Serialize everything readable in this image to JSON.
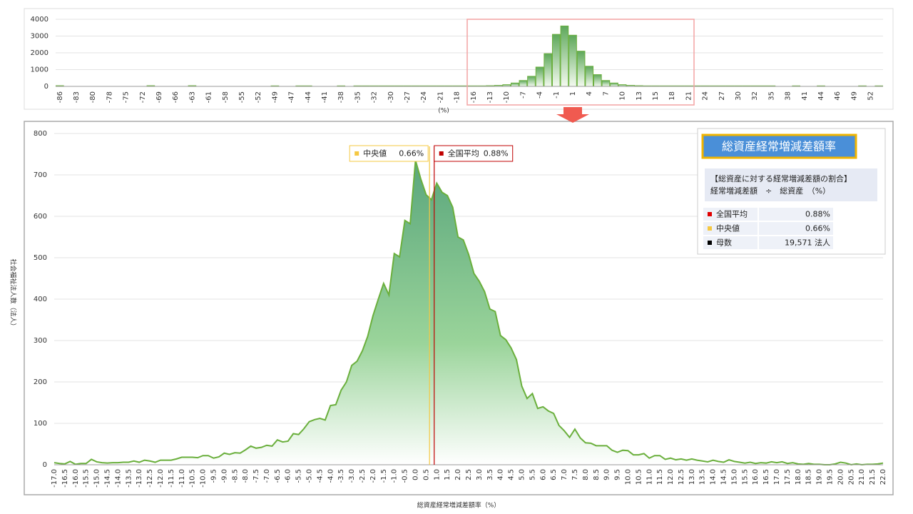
{
  "chart_data": [
    {
      "type": "bar",
      "xlabel": "(%)",
      "categories": [
        "-86",
        null,
        "-83",
        null,
        "-80",
        null,
        "-78",
        null,
        "-75",
        null,
        "-72",
        null,
        "-69",
        null,
        "-66",
        null,
        "-63",
        null,
        "-61",
        null,
        "-58",
        null,
        "-55",
        null,
        "-52",
        null,
        "-49",
        null,
        "-47",
        null,
        "-44",
        null,
        "-41",
        null,
        "-38",
        null,
        "-35",
        null,
        "-32",
        null,
        "-30",
        null,
        "-27",
        null,
        "-24",
        null,
        "-21",
        null,
        "-18",
        null,
        "-16",
        null,
        "-13",
        null,
        "-10",
        null,
        "-7",
        null,
        "-4",
        null,
        "-1",
        null,
        "1",
        null,
        "4",
        null,
        "7",
        null,
        "10",
        null,
        "13",
        null,
        "15",
        null,
        "18",
        null,
        "21",
        null,
        "24",
        null,
        "27",
        null,
        "30",
        null,
        "32",
        null,
        "35",
        null,
        "38",
        null,
        "41",
        null,
        "44",
        null,
        "46",
        null,
        "49",
        null,
        "52",
        null
      ],
      "values": [
        40,
        0,
        0,
        0,
        0,
        0,
        0,
        0,
        0,
        0,
        0,
        40,
        0,
        0,
        0,
        0,
        40,
        0,
        0,
        0,
        0,
        0,
        0,
        0,
        0,
        0,
        30,
        0,
        0,
        30,
        30,
        0,
        0,
        0,
        30,
        0,
        30,
        30,
        30,
        30,
        30,
        30,
        30,
        30,
        30,
        30,
        30,
        30,
        30,
        30,
        30,
        30,
        40,
        60,
        100,
        200,
        350,
        600,
        1150,
        1950,
        3100,
        3600,
        3050,
        2100,
        1200,
        700,
        350,
        200,
        100,
        60,
        40,
        30,
        30,
        30,
        30,
        30,
        30,
        30,
        30,
        30,
        30,
        30,
        30,
        30,
        30,
        30,
        30,
        0,
        0,
        30,
        0,
        0,
        30,
        0,
        0,
        0,
        0,
        30,
        0,
        30
      ],
      "color": "#6aaf3c",
      "ylim": [
        0,
        4000
      ],
      "yticks": [
        0,
        1000,
        2000,
        3000,
        4000
      ],
      "grid": true
    },
    {
      "type": "area",
      "xlabel": "総資産経常増減差額率（%）",
      "ylabel": "社会福祉法人数（法人）",
      "categories": [
        "-17.0",
        null,
        "-16.5",
        null,
        "-16.0",
        null,
        "-15.5",
        null,
        "-15.0",
        null,
        "-14.5",
        null,
        "-14.0",
        null,
        "-13.5",
        null,
        "-13.0",
        null,
        "-12.5",
        null,
        "-12.0",
        null,
        "-11.5",
        null,
        "-11.0",
        null,
        "-10.5",
        null,
        "-10.0",
        null,
        "-9.5",
        null,
        "-9.0",
        null,
        "-8.5",
        null,
        "-8.0",
        null,
        "-7.5",
        null,
        "-7.0",
        null,
        "-6.5",
        null,
        "-6.0",
        null,
        "-5.5",
        null,
        "-5.0",
        null,
        "-4.5",
        null,
        "-4.0",
        null,
        "-3.5",
        null,
        "-3.0",
        null,
        "-2.5",
        null,
        "-2.0",
        null,
        "-1.5",
        null,
        "-1.0",
        null,
        "-0.5",
        null,
        "0.0",
        null,
        "0.5",
        null,
        "1.0",
        null,
        "1.5",
        null,
        "2.0",
        null,
        "2.5",
        null,
        "3.0",
        null,
        "3.5",
        null,
        "4.0",
        null,
        "4.5",
        null,
        "5.0",
        null,
        "5.5",
        null,
        "6.0",
        null,
        "6.5",
        null,
        "7.0",
        null,
        "7.5",
        null,
        "8.0",
        null,
        "8.5",
        null,
        "9.0",
        null,
        "9.5",
        null,
        "10.0",
        null,
        "10.5",
        null,
        "11.0",
        null,
        "11.5",
        null,
        "12.0",
        null,
        "12.5",
        null,
        "13.0",
        null,
        "13.5",
        null,
        "14.0",
        null,
        "14.5",
        null,
        "15.0",
        null,
        "15.5",
        null,
        "16.0",
        null,
        "16.5",
        null,
        "17.0",
        null,
        "17.5",
        null,
        "18.0",
        null,
        "18.5",
        null,
        "19.0",
        null,
        "19.5",
        null,
        "20.0",
        null,
        "20.5",
        null,
        "21.0",
        null,
        "21.5",
        null,
        "22.0"
      ],
      "values": [
        5,
        3,
        2,
        8,
        1,
        3,
        3,
        13,
        7,
        5,
        4,
        5,
        5,
        6,
        6,
        9,
        6,
        11,
        9,
        6,
        11,
        11,
        11,
        14,
        18,
        18,
        18,
        17,
        22,
        22,
        16,
        19,
        28,
        25,
        29,
        28,
        36,
        45,
        40,
        42,
        47,
        45,
        60,
        55,
        57,
        75,
        73,
        87,
        104,
        109,
        112,
        108,
        143,
        145,
        180,
        200,
        240,
        250,
        275,
        310,
        360,
        400,
        438,
        410,
        510,
        502,
        590,
        582,
        735,
        690,
        652,
        640,
        680,
        658,
        650,
        622,
        550,
        543,
        508,
        462,
        443,
        418,
        376,
        370,
        312,
        302,
        282,
        254,
        190,
        160,
        172,
        136,
        140,
        130,
        124,
        95,
        82,
        66,
        86,
        65,
        53,
        52,
        46,
        46,
        46,
        35,
        30,
        35,
        34,
        24,
        24,
        27,
        16,
        22,
        22,
        13,
        16,
        12,
        14,
        11,
        14,
        11,
        9,
        7,
        11,
        8,
        6,
        12,
        8,
        6,
        4,
        6,
        3,
        5,
        4,
        7,
        5,
        7,
        3,
        5,
        2,
        1,
        3,
        1,
        1,
        0,
        0,
        2,
        6,
        4,
        0,
        2,
        0,
        1,
        1,
        2,
        4
      ],
      "color": "#6aaf3c",
      "ylim": [
        0,
        800
      ],
      "yticks": [
        0,
        100,
        200,
        300,
        400,
        500,
        600,
        700,
        800
      ],
      "grid": true,
      "reference_lines": [
        {
          "name": "中央値",
          "value": 0.66,
          "value_label": "0.66%",
          "color": "#f5c842"
        },
        {
          "name": "全国平均",
          "value": 0.88,
          "value_label": "0.88%",
          "color": "#c00000"
        }
      ]
    }
  ],
  "info_panel": {
    "title": "総資産経常増減差額率",
    "description": [
      "【総資産に対する経常増減差額の割合】",
      "経常増減差額　÷　総資産　（%）"
    ],
    "rows": [
      {
        "marker_color": "#e00000",
        "label": "全国平均",
        "value": "0.88%"
      },
      {
        "marker_color": "#f5c842",
        "label": "中央値",
        "value": "0.66%"
      },
      {
        "marker_color": "#000000",
        "label": "母数",
        "value": "19,571 法人"
      }
    ]
  }
}
